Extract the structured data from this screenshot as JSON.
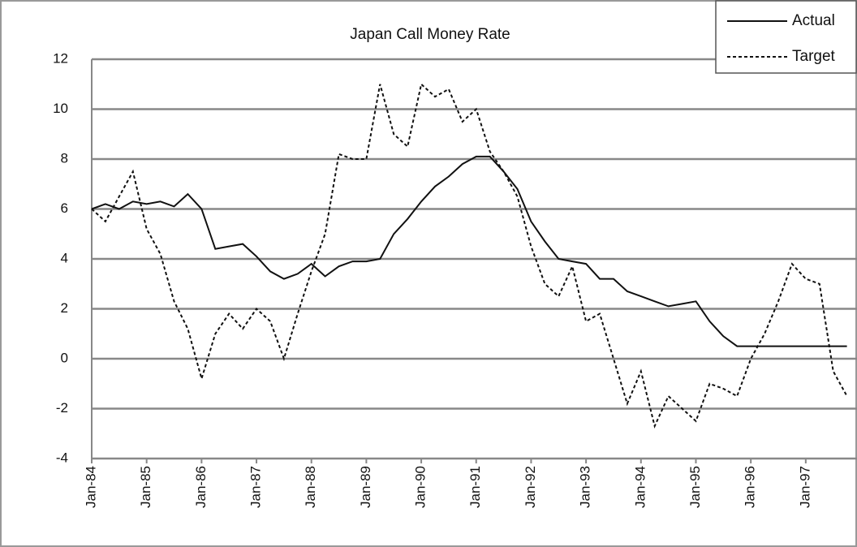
{
  "chart_data": {
    "type": "line",
    "title": "Japan Call Money Rate",
    "categories": [
      "Jan-84",
      null,
      null,
      null,
      "Jan-85",
      null,
      null,
      null,
      "Jan-86",
      null,
      null,
      null,
      "Jan-87",
      null,
      null,
      null,
      "Jan-88",
      null,
      null,
      null,
      "Jan-89",
      null,
      null,
      null,
      "Jan-90",
      null,
      null,
      null,
      "Jan-91",
      null,
      null,
      null,
      "Jan-92",
      null,
      null,
      null,
      "Jan-93",
      null,
      null,
      null,
      "Jan-94",
      null,
      null,
      null,
      "Jan-95",
      null,
      null,
      null,
      "Jan-96",
      null,
      null,
      null,
      "Jan-97",
      null,
      null,
      null
    ],
    "series": [
      {
        "name": "Actual",
        "color": "#111111",
        "dash": "solid",
        "values": [
          6.0,
          6.2,
          6.0,
          6.3,
          6.2,
          6.3,
          6.1,
          6.6,
          6.0,
          4.4,
          4.5,
          4.6,
          4.1,
          3.5,
          3.2,
          3.4,
          3.8,
          3.3,
          3.7,
          3.9,
          3.9,
          4.0,
          5.0,
          5.6,
          6.3,
          6.9,
          7.3,
          7.8,
          8.1,
          8.1,
          7.5,
          6.8,
          5.5,
          4.7,
          4.0,
          3.9,
          3.8,
          3.2,
          3.2,
          2.7,
          2.5,
          2.3,
          2.1,
          2.2,
          2.3,
          1.5,
          0.9,
          0.5,
          0.5,
          0.5,
          0.5,
          0.5,
          0.5,
          0.5,
          0.5,
          0.5
        ]
      },
      {
        "name": "Target",
        "color": "#111111",
        "dash": "dashed",
        "values": [
          6.0,
          5.5,
          6.5,
          7.5,
          5.2,
          4.2,
          2.3,
          1.2,
          -0.8,
          1.0,
          1.8,
          1.2,
          2.0,
          1.5,
          0.0,
          1.8,
          3.5,
          5.0,
          8.2,
          8.0,
          8.0,
          11.0,
          9.0,
          8.5,
          11.0,
          10.5,
          10.8,
          9.5,
          10.0,
          8.3,
          7.5,
          6.5,
          4.5,
          3.0,
          2.5,
          3.7,
          1.5,
          1.8,
          0.0,
          -1.8,
          -0.5,
          -2.7,
          -1.5,
          -2.0,
          -2.5,
          -1.0,
          -1.2,
          -1.5,
          0.0,
          1.0,
          2.3,
          3.8,
          3.2,
          3.0,
          -0.5,
          -1.5
        ]
      }
    ],
    "ylim": [
      -4,
      12
    ],
    "yticks": [
      -4,
      -2,
      0,
      2,
      4,
      6,
      8,
      10,
      12
    ],
    "grid": true,
    "legend": "top-right"
  }
}
